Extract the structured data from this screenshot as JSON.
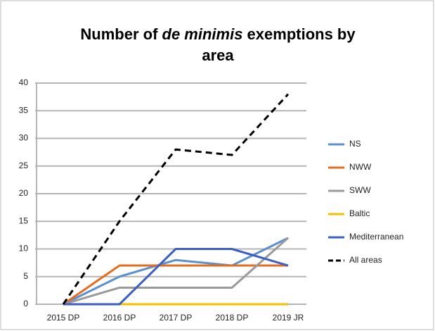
{
  "chart_data": {
    "type": "line",
    "title": [
      "Number of ",
      "de minimis",
      " exemptions by",
      "area"
    ],
    "categories": [
      "2015 DP",
      "2016 DP",
      "2017 DP",
      "2018 DP",
      "2019 JR"
    ],
    "series": [
      {
        "name": "NS",
        "color": "#5b8fd0",
        "values": [
          0,
          5,
          8,
          7,
          12
        ]
      },
      {
        "name": "NWW",
        "color": "#e36c1f",
        "values": [
          0,
          7,
          7,
          7,
          7
        ]
      },
      {
        "name": "SWW",
        "color": "#9a9a9a",
        "values": [
          0,
          3,
          3,
          3,
          12
        ]
      },
      {
        "name": "Baltic",
        "color": "#f2c000",
        "values": [
          0,
          0,
          0,
          0,
          0
        ]
      },
      {
        "name": "Mediterranean",
        "color": "#3d5fc4",
        "values": [
          0,
          0,
          10,
          10,
          7
        ]
      },
      {
        "name": "All areas",
        "color": "#000000",
        "dashed": true,
        "values": [
          0,
          15,
          28,
          27,
          38
        ]
      }
    ],
    "ylim": [
      0,
      40
    ],
    "yticks": [
      0,
      5,
      10,
      15,
      20,
      25,
      30,
      35,
      40
    ],
    "grid": true,
    "legend": "right"
  }
}
